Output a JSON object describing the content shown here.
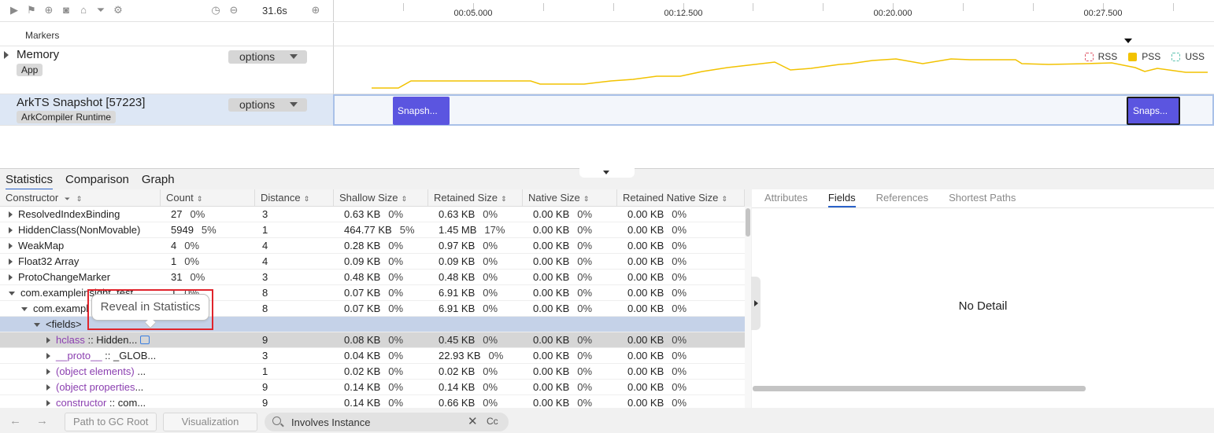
{
  "toolbar": {
    "duration": "31.6s",
    "icons": [
      "play-icon",
      "flag-icon",
      "add-circle-icon",
      "camera-icon",
      "home-icon",
      "filter-icon",
      "gear-icon",
      "timer-icon",
      "zoom-out-icon",
      "zoom-in-icon"
    ]
  },
  "ruler": {
    "ticks": [
      "00:05.000",
      "00:12.500",
      "00:20.000",
      "00:27.500"
    ]
  },
  "lanes": {
    "markers": {
      "label": "Markers"
    },
    "memory": {
      "title": "Memory",
      "tag": "App",
      "options_label": "options",
      "legend": [
        {
          "label": "RSS",
          "color": "#e05a6a"
        },
        {
          "label": "PSS",
          "color": "#f2c200"
        },
        {
          "label": "USS",
          "color": "#5fc3b0"
        }
      ],
      "pss_color": "#f2c200"
    },
    "snapshot": {
      "title": "ArkTS Snapshot [57223]",
      "tag": "ArkCompiler Runtime",
      "options_label": "options",
      "blocks": [
        "Snapsh...",
        "Snaps..."
      ],
      "block_color": "#5b55e0"
    }
  },
  "view_tabs": [
    "Statistics",
    "Comparison",
    "Graph"
  ],
  "table": {
    "columns": [
      "Constructor",
      "Count",
      "Distance",
      "Shallow Size",
      "Retained Size",
      "Native Size",
      "Retained Native Size"
    ],
    "rows": [
      {
        "name": "ResolvedIndexBinding",
        "count": "27",
        "count_pct": "0%",
        "distance": "3",
        "shallow": "0.63 KB",
        "shallow_pct": "0%",
        "retained": "0.63 KB",
        "retained_pct": "0%",
        "native": "0.00 KB",
        "native_pct": "0%",
        "rnative": "0.00 KB",
        "rnative_pct": "0%"
      },
      {
        "name": "HiddenClass(NonMovable)",
        "count": "5949",
        "count_pct": "5%",
        "distance": "1",
        "shallow": "464.77 KB",
        "shallow_pct": "5%",
        "retained": "1.45 MB",
        "retained_pct": "17%",
        "native": "0.00 KB",
        "native_pct": "0%",
        "rnative": "0.00 KB",
        "rnative_pct": "0%"
      },
      {
        "name": "WeakMap",
        "count": "4",
        "count_pct": "0%",
        "distance": "4",
        "shallow": "0.28 KB",
        "shallow_pct": "0%",
        "retained": "0.97 KB",
        "retained_pct": "0%",
        "native": "0.00 KB",
        "native_pct": "0%",
        "rnative": "0.00 KB",
        "rnative_pct": "0%"
      },
      {
        "name": "Float32 Array",
        "count": "1",
        "count_pct": "0%",
        "distance": "4",
        "shallow": "0.09 KB",
        "shallow_pct": "0%",
        "retained": "0.09 KB",
        "retained_pct": "0%",
        "native": "0.00 KB",
        "native_pct": "0%",
        "rnative": "0.00 KB",
        "rnative_pct": "0%"
      },
      {
        "name": "ProtoChangeMarker",
        "count": "31",
        "count_pct": "0%",
        "distance": "3",
        "shallow": "0.48 KB",
        "shallow_pct": "0%",
        "retained": "0.48 KB",
        "retained_pct": "0%",
        "native": "0.00 KB",
        "native_pct": "0%",
        "rnative": "0.00 KB",
        "rnative_pct": "0%"
      },
      {
        "name": "com.exampleinsight_test",
        "count": "1",
        "count_pct": "0%",
        "distance": "8",
        "shallow": "0.07 KB",
        "shallow_pct": "0%",
        "retained": "6.91 KB",
        "retained_pct": "0%",
        "native": "0.00 KB",
        "native_pct": "0%",
        "rnative": "0.00 KB",
        "rnative_pct": "0%"
      },
      {
        "name": "com.exampl",
        "count": "",
        "count_pct": "",
        "distance": "8",
        "shallow": "0.07 KB",
        "shallow_pct": "0%",
        "retained": "6.91 KB",
        "retained_pct": "0%",
        "native": "0.00 KB",
        "native_pct": "0%",
        "rnative": "0.00 KB",
        "rnative_pct": "0%"
      },
      {
        "name": "<fields>",
        "count": "",
        "count_pct": "",
        "distance": "",
        "shallow": "",
        "shallow_pct": "",
        "retained": "",
        "retained_pct": "",
        "native": "",
        "native_pct": "",
        "rnative": "",
        "rnative_pct": ""
      },
      {
        "name": "hclass",
        "suffix": " :: Hidden...",
        "count": "",
        "count_pct": "",
        "distance": "9",
        "shallow": "0.08 KB",
        "shallow_pct": "0%",
        "retained": "0.45 KB",
        "retained_pct": "0%",
        "native": "0.00 KB",
        "native_pct": "0%",
        "rnative": "0.00 KB",
        "rnative_pct": "0%"
      },
      {
        "name": "__proto__",
        "suffix": " :: _GLOB...",
        "count": "",
        "count_pct": "",
        "distance": "3",
        "shallow": "0.04 KB",
        "shallow_pct": "0%",
        "retained": "22.93 KB",
        "retained_pct": "0%",
        "native": "0.00 KB",
        "native_pct": "0%",
        "rnative": "0.00 KB",
        "rnative_pct": "0%"
      },
      {
        "name": "(object elements)",
        "suffix": " ...",
        "count": "",
        "count_pct": "",
        "distance": "1",
        "shallow": "0.02 KB",
        "shallow_pct": "0%",
        "retained": "0.02 KB",
        "retained_pct": "0%",
        "native": "0.00 KB",
        "native_pct": "0%",
        "rnative": "0.00 KB",
        "rnative_pct": "0%"
      },
      {
        "name": "(object properties",
        "suffix": "...",
        "count": "",
        "count_pct": "",
        "distance": "9",
        "shallow": "0.14 KB",
        "shallow_pct": "0%",
        "retained": "0.14 KB",
        "retained_pct": "0%",
        "native": "0.00 KB",
        "native_pct": "0%",
        "rnative": "0.00 KB",
        "rnative_pct": "0%"
      },
      {
        "name": "constructor",
        "suffix": " :: com...",
        "count": "",
        "count_pct": "",
        "distance": "9",
        "shallow": "0.14 KB",
        "shallow_pct": "0%",
        "retained": "0.66 KB",
        "retained_pct": "0%",
        "native": "0.00 KB",
        "native_pct": "0%",
        "rnative": "0.00 KB",
        "rnative_pct": "0%"
      }
    ]
  },
  "tooltip": {
    "text": "Reveal in Statistics"
  },
  "detail": {
    "tabs": [
      "Attributes",
      "Fields",
      "References",
      "Shortest Paths"
    ],
    "empty_text": "No Detail"
  },
  "bottom_bar": {
    "path_button": "Path to GC Root",
    "viz_button": "Visualization",
    "search_value": "Involves Instance",
    "case_label": "Cc"
  }
}
